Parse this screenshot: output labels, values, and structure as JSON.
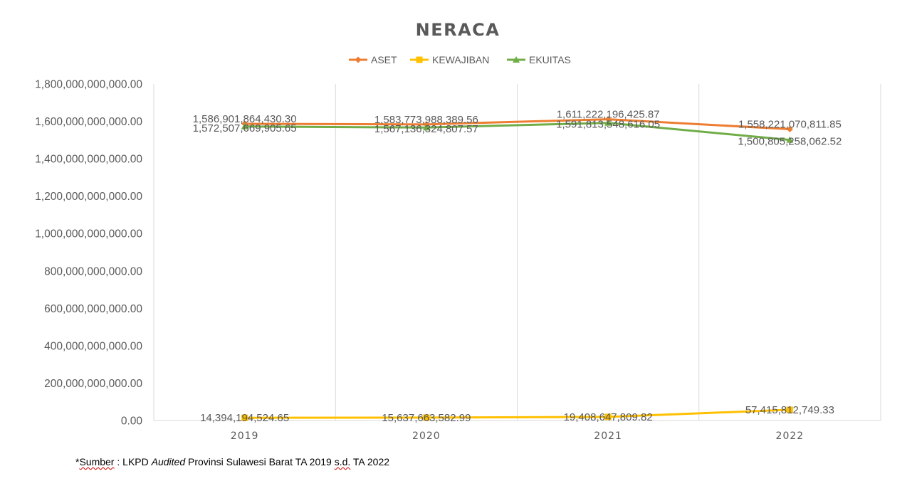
{
  "chart_data": {
    "type": "line",
    "title": "NERACA",
    "xlabel": "",
    "ylabel": "",
    "categories": [
      "2019",
      "2020",
      "2021",
      "2022"
    ],
    "ylim": [
      0,
      1800000000000
    ],
    "yticks": [
      0,
      200000000000,
      400000000000,
      600000000000,
      800000000000,
      1000000000000,
      1200000000000,
      1400000000000,
      1600000000000,
      1800000000000
    ],
    "ytick_labels": [
      "0.00",
      "200,000,000,000.00",
      "400,000,000,000.00",
      "600,000,000,000.00",
      "800,000,000,000.00",
      "1,000,000,000,000.00",
      "1,200,000,000,000.00",
      "1,400,000,000,000.00",
      "1,600,000,000,000.00",
      "1,800,000,000,000.00"
    ],
    "grid": "vertical",
    "legend": "top",
    "series": [
      {
        "name": "ASET",
        "color": "#ED7D31",
        "marker": "diamond",
        "values": [
          1586901864430.3,
          1583773988389.56,
          1611222196425.87,
          1558221070811.85
        ],
        "labels": [
          "1,586,901,864,430.30",
          "1,583,773,988,389.56",
          "1,611,222,196,425.87",
          "1,558,221,070,811.85"
        ]
      },
      {
        "name": "KEWAJIBAN",
        "color": "#FFC000",
        "marker": "square",
        "values": [
          14394194524.65,
          15637663582.99,
          19408647809.82,
          57415812749.33
        ],
        "labels": [
          "14,394,194,524.65",
          "15,637,663,582.99",
          "19,408,647,809.82",
          "57,415,812,749.33"
        ]
      },
      {
        "name": "EKUITAS",
        "color": "#70AD47",
        "marker": "triangle",
        "values": [
          1572507669905.65,
          1567136324807.57,
          1591813548616.05,
          1500805258062.52
        ],
        "labels": [
          "1,572,507,669,905.65",
          "1,567,136,324,807.57",
          "1,591,813,548,616.05",
          "1,500,805,258,062.52"
        ]
      }
    ]
  },
  "source": {
    "prefix": "*",
    "word1": "Sumber",
    "part2": " : LKPD ",
    "italic": "Audited",
    "part3": " Provinsi Sulawesi Barat TA 2019 ",
    "word2": "s.d.",
    "part4": " TA 2022"
  }
}
